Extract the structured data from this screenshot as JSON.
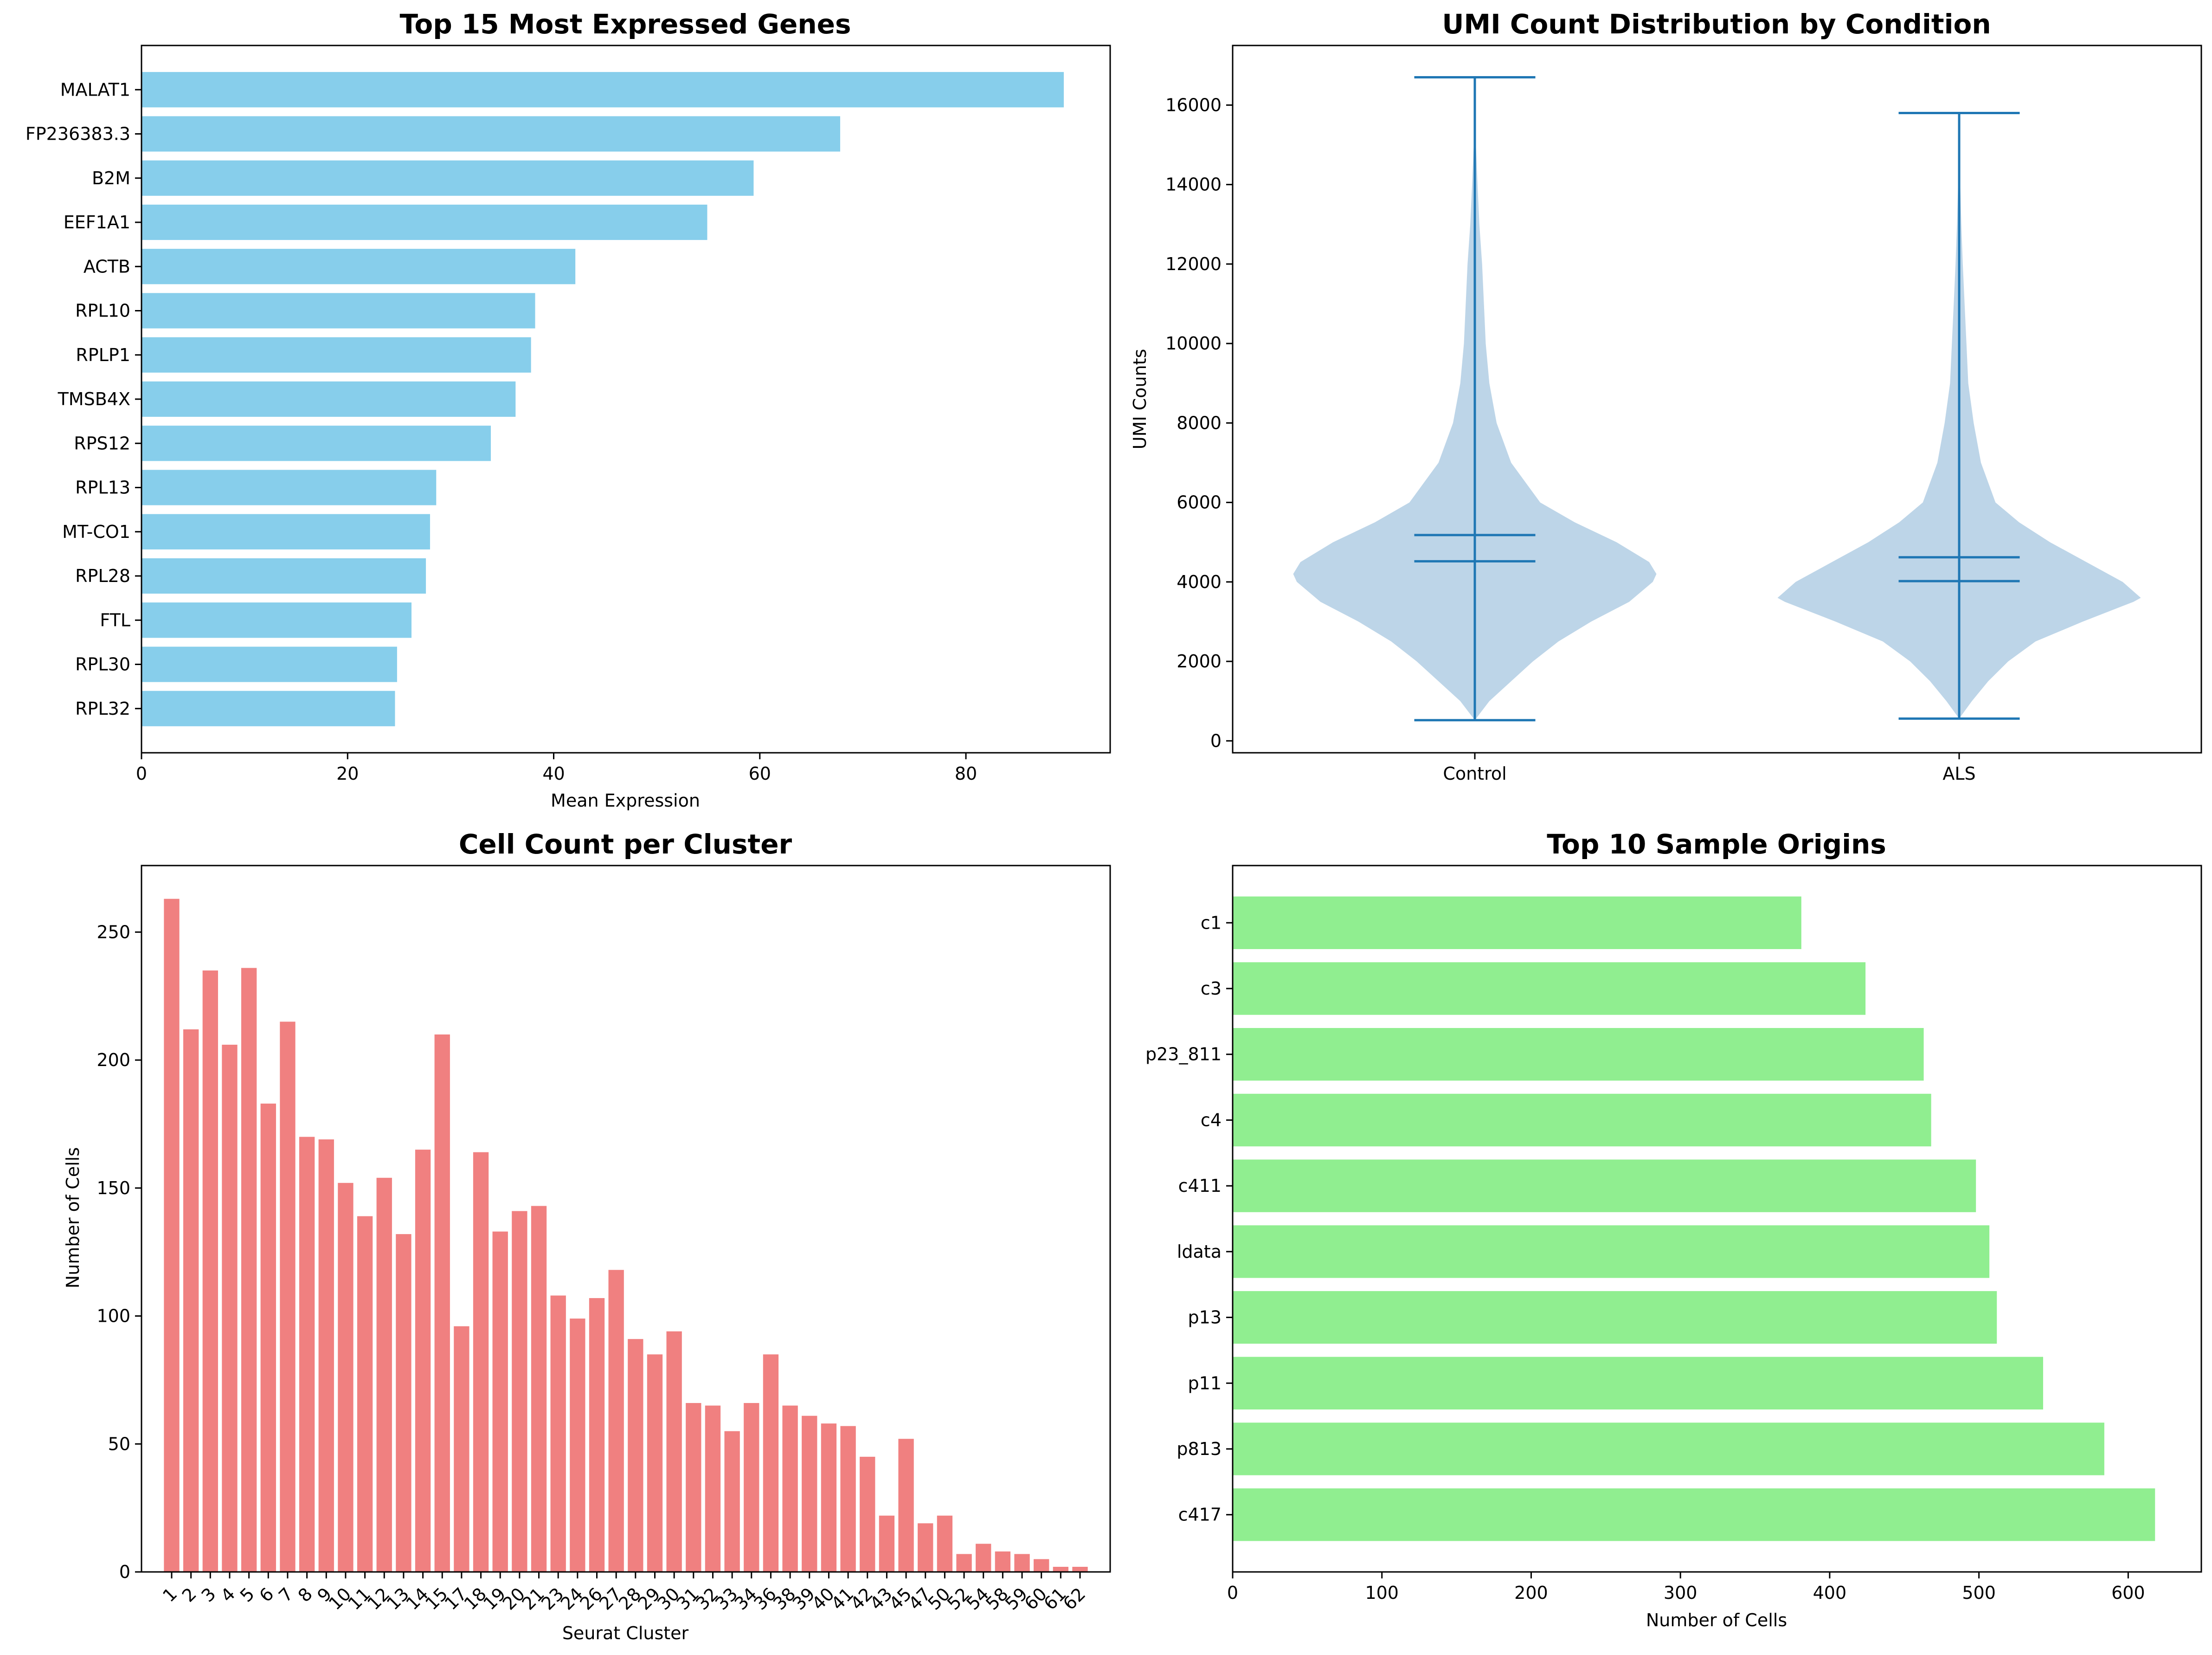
{
  "chart_data": [
    {
      "type": "bar",
      "orientation": "horizontal",
      "title": "Top 15 Most Expressed Genes",
      "xlabel": "Mean Expression",
      "ylabel": "",
      "categories": [
        "MALAT1",
        "FP236383.3",
        "B2M",
        "EEF1A1",
        "ACTB",
        "RPL10",
        "RPLP1",
        "TMSB4X",
        "RPS12",
        "RPL13",
        "MT-CO1",
        "RPL28",
        "FTL",
        "RPL30",
        "RPL32"
      ],
      "values": [
        89.5,
        67.8,
        59.4,
        54.9,
        42.1,
        38.2,
        37.8,
        36.3,
        33.9,
        28.6,
        28.0,
        27.6,
        26.2,
        24.8,
        24.6
      ],
      "xlim": [
        0,
        94
      ],
      "xticks": [
        0,
        20,
        40,
        60,
        80
      ],
      "color": "#87CEEB",
      "grid": false
    },
    {
      "type": "violin",
      "title": "UMI Count Distribution by Condition",
      "xlabel": "",
      "ylabel": "UMI Counts",
      "categories": [
        "Control",
        "ALS"
      ],
      "ylim": [
        -300,
        17500
      ],
      "yticks": [
        0,
        2000,
        4000,
        6000,
        8000,
        10000,
        12000,
        14000,
        16000
      ],
      "stats": [
        {
          "name": "Control",
          "min": 520,
          "max": 16700,
          "mean": 5180,
          "median": 4520
        },
        {
          "name": "ALS",
          "min": 560,
          "max": 15800,
          "mean": 4620,
          "median": 4020
        }
      ],
      "density_profiles": [
        {
          "name": "Control",
          "points": [
            [
              520,
              0.0
            ],
            [
              1000,
              0.08
            ],
            [
              1500,
              0.2
            ],
            [
              2000,
              0.32
            ],
            [
              2500,
              0.46
            ],
            [
              3000,
              0.64
            ],
            [
              3500,
              0.85
            ],
            [
              4000,
              0.98
            ],
            [
              4200,
              1.0
            ],
            [
              4500,
              0.96
            ],
            [
              5000,
              0.78
            ],
            [
              5500,
              0.55
            ],
            [
              6000,
              0.36
            ],
            [
              7000,
              0.2
            ],
            [
              8000,
              0.12
            ],
            [
              9000,
              0.08
            ],
            [
              10000,
              0.06
            ],
            [
              11000,
              0.05
            ],
            [
              12000,
              0.04
            ],
            [
              13000,
              0.025
            ],
            [
              14000,
              0.015
            ],
            [
              15000,
              0.006
            ],
            [
              16000,
              0.002
            ],
            [
              16700,
              0.0
            ]
          ]
        },
        {
          "name": "ALS",
          "points": [
            [
              560,
              0.0
            ],
            [
              1000,
              0.07
            ],
            [
              1500,
              0.16
            ],
            [
              2000,
              0.27
            ],
            [
              2500,
              0.42
            ],
            [
              3000,
              0.68
            ],
            [
              3500,
              0.96
            ],
            [
              3600,
              1.0
            ],
            [
              4000,
              0.9
            ],
            [
              4500,
              0.7
            ],
            [
              5000,
              0.5
            ],
            [
              5500,
              0.33
            ],
            [
              6000,
              0.2
            ],
            [
              7000,
              0.12
            ],
            [
              8000,
              0.08
            ],
            [
              9000,
              0.05
            ],
            [
              10000,
              0.04
            ],
            [
              11000,
              0.03
            ],
            [
              12000,
              0.02
            ],
            [
              13000,
              0.012
            ],
            [
              14000,
              0.006
            ],
            [
              15000,
              0.002
            ],
            [
              15800,
              0.0
            ]
          ]
        }
      ],
      "fill_color": "#BDD5E8",
      "line_color": "#1F77B4",
      "grid": false
    },
    {
      "type": "bar",
      "orientation": "vertical",
      "title": "Cell Count per Cluster",
      "xlabel": "Seurat Cluster",
      "ylabel": "Number of Cells",
      "categories": [
        "1",
        "2",
        "3",
        "4",
        "5",
        "6",
        "7",
        "8",
        "9",
        "10",
        "11",
        "12",
        "13",
        "14",
        "15",
        "17",
        "18",
        "19",
        "20",
        "21",
        "23",
        "24",
        "26",
        "27",
        "28",
        "29",
        "30",
        "31",
        "32",
        "33",
        "34",
        "36",
        "38",
        "39",
        "40",
        "41",
        "42",
        "43",
        "45",
        "47",
        "50",
        "52",
        "54",
        "58",
        "59",
        "60",
        "61",
        "62"
      ],
      "values": [
        263,
        212,
        235,
        206,
        236,
        183,
        215,
        170,
        169,
        152,
        139,
        154,
        132,
        165,
        210,
        96,
        164,
        133,
        141,
        143,
        108,
        99,
        107,
        118,
        91,
        85,
        94,
        66,
        65,
        55,
        66,
        85,
        65,
        61,
        58,
        57,
        45,
        22,
        52,
        19,
        22,
        7,
        11,
        8,
        7,
        5,
        2,
        2
      ],
      "ylim": [
        0,
        276
      ],
      "yticks": [
        0,
        50,
        100,
        150,
        200,
        250
      ],
      "color": "#F08080",
      "grid": false
    },
    {
      "type": "bar",
      "orientation": "horizontal",
      "title": "Top 10 Sample Origins",
      "xlabel": "Number of Cells",
      "ylabel": "",
      "categories": [
        "c1",
        "c3",
        "p23_811",
        "c4",
        "c411",
        "ldata",
        "p13",
        "p11",
        "p813",
        "c417"
      ],
      "values": [
        381,
        424,
        463,
        468,
        498,
        507,
        512,
        543,
        584,
        618
      ],
      "xlim": [
        0,
        649
      ],
      "xticks": [
        0,
        100,
        200,
        300,
        400,
        500,
        600
      ],
      "color": "#90EE90",
      "grid": false
    }
  ]
}
